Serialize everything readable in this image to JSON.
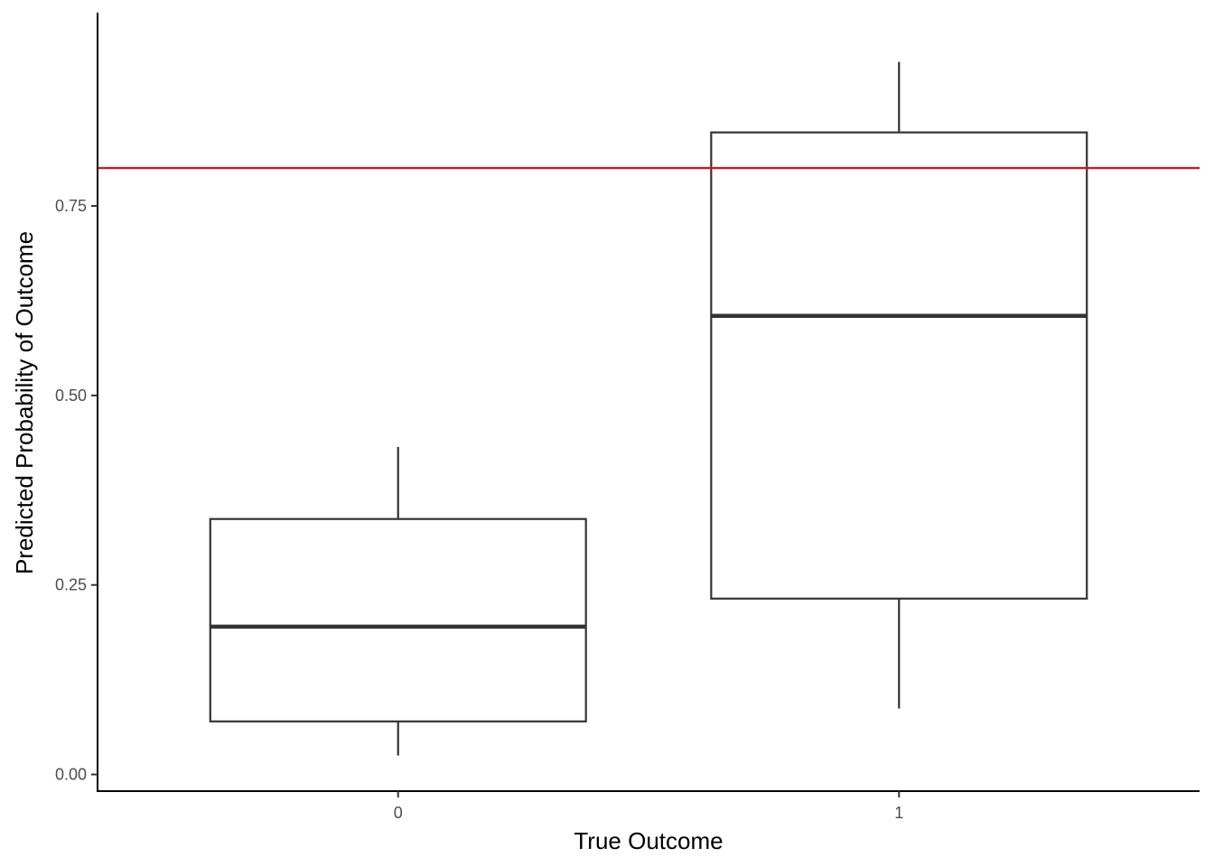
{
  "chart_data": {
    "type": "boxplot",
    "title": "",
    "xlabel": "True Outcome",
    "ylabel": "Predicted Probability of Outcome",
    "categories": [
      "0",
      "1"
    ],
    "boxes": [
      {
        "category": "0",
        "whisker_low": 0.025,
        "q1": 0.07,
        "median": 0.195,
        "q3": 0.337,
        "whisker_high": 0.432
      },
      {
        "category": "1",
        "whisker_low": 0.087,
        "q1": 0.232,
        "median": 0.605,
        "q3": 0.847,
        "whisker_high": 0.94
      }
    ],
    "reference_line": {
      "y": 0.8,
      "color": "#ff0000"
    },
    "yticks": [
      0.0,
      0.25,
      0.5,
      0.75
    ],
    "ytick_labels": [
      "0.00",
      "0.25",
      "0.50",
      "0.75"
    ],
    "ylim": [
      -0.022,
      1.005
    ],
    "grid": false,
    "box_color": "#333333"
  }
}
